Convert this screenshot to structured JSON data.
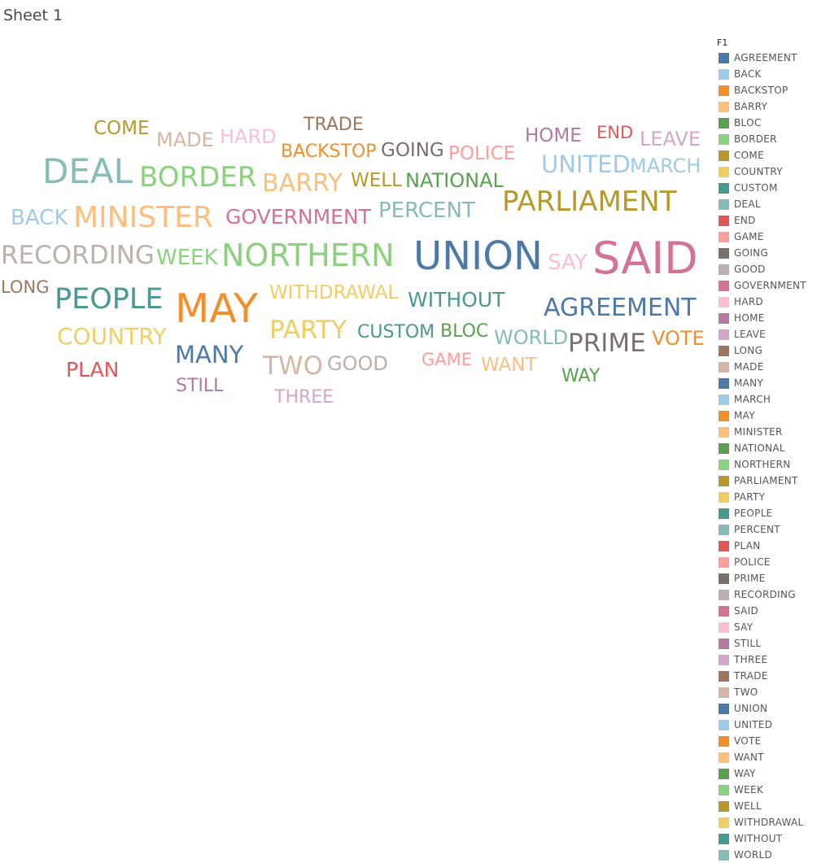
{
  "sheet": {
    "title": "Sheet 1"
  },
  "legend": {
    "title": "F1"
  },
  "chart_data": {
    "type": "word-cloud",
    "legend_placement": "right",
    "words": [
      {
        "text": "AGREEMENT",
        "color": "#4e79a7",
        "weight": 30
      },
      {
        "text": "BACK",
        "color": "#a0cbe8",
        "weight": 26
      },
      {
        "text": "BACKSTOP",
        "color": "#f28e2b",
        "weight": 22
      },
      {
        "text": "BARRY",
        "color": "#ffbe7d",
        "weight": 30
      },
      {
        "text": "BLOC",
        "color": "#59a14f",
        "weight": 22
      },
      {
        "text": "BORDER",
        "color": "#8cd17d",
        "weight": 34
      },
      {
        "text": "COME",
        "color": "#b6992d",
        "weight": 23
      },
      {
        "text": "COUNTRY",
        "color": "#f1ce63",
        "weight": 28
      },
      {
        "text": "CUSTOM",
        "color": "#499894",
        "weight": 22
      },
      {
        "text": "DEAL",
        "color": "#86bcb6",
        "weight": 42
      },
      {
        "text": "END",
        "color": "#e15759",
        "weight": 21
      },
      {
        "text": "GAME",
        "color": "#ff9d9a",
        "weight": 21
      },
      {
        "text": "GOING",
        "color": "#79706e",
        "weight": 23
      },
      {
        "text": "GOOD",
        "color": "#bab0ac",
        "weight": 24
      },
      {
        "text": "GOVERNMENT",
        "color": "#d37295",
        "weight": 25
      },
      {
        "text": "HARD",
        "color": "#fabfd2",
        "weight": 24
      },
      {
        "text": "HOME",
        "color": "#b07aa1",
        "weight": 23
      },
      {
        "text": "LEAVE",
        "color": "#d4a6c8",
        "weight": 24
      },
      {
        "text": "LONG",
        "color": "#9d7660",
        "weight": 21
      },
      {
        "text": "MADE",
        "color": "#d7b5a6",
        "weight": 24
      },
      {
        "text": "MANY",
        "color": "#4e79a7",
        "weight": 29
      },
      {
        "text": "MARCH",
        "color": "#a0cbe8",
        "weight": 24
      },
      {
        "text": "MAY",
        "color": "#f28e2b",
        "weight": 49
      },
      {
        "text": "MINISTER",
        "color": "#ffbe7d",
        "weight": 36
      },
      {
        "text": "NATIONAL",
        "color": "#59a14f",
        "weight": 24
      },
      {
        "text": "NORTHERN",
        "color": "#8cd17d",
        "weight": 38
      },
      {
        "text": "PARLIAMENT",
        "color": "#b6992d",
        "weight": 34
      },
      {
        "text": "PARTY",
        "color": "#f1ce63",
        "weight": 31
      },
      {
        "text": "PEOPLE",
        "color": "#499894",
        "weight": 35
      },
      {
        "text": "PERCENT",
        "color": "#86bcb6",
        "weight": 26
      },
      {
        "text": "PLAN",
        "color": "#e15759",
        "weight": 25
      },
      {
        "text": "POLICE",
        "color": "#ff9d9a",
        "weight": 23
      },
      {
        "text": "PRIME",
        "color": "#79706e",
        "weight": 31
      },
      {
        "text": "RECORDING",
        "color": "#bab0ac",
        "weight": 31
      },
      {
        "text": "SAID",
        "color": "#d37295",
        "weight": 54
      },
      {
        "text": "SAY",
        "color": "#fabfd2",
        "weight": 26
      },
      {
        "text": "STILL",
        "color": "#b07aa1",
        "weight": 22
      },
      {
        "text": "THREE",
        "color": "#d4a6c8",
        "weight": 22
      },
      {
        "text": "TRADE",
        "color": "#9d7660",
        "weight": 22
      },
      {
        "text": "TWO",
        "color": "#d7b5a6",
        "weight": 31
      },
      {
        "text": "UNION",
        "color": "#4e79a7",
        "weight": 48
      },
      {
        "text": "UNITED",
        "color": "#a0cbe8",
        "weight": 29
      },
      {
        "text": "VOTE",
        "color": "#f28e2b",
        "weight": 24
      },
      {
        "text": "WANT",
        "color": "#ffbe7d",
        "weight": 23
      },
      {
        "text": "WAY",
        "color": "#59a14f",
        "weight": 22
      },
      {
        "text": "WEEK",
        "color": "#8cd17d",
        "weight": 26
      },
      {
        "text": "WELL",
        "color": "#b6992d",
        "weight": 23
      },
      {
        "text": "WITHDRAWAL",
        "color": "#f1ce63",
        "weight": 23
      },
      {
        "text": "WITHOUT",
        "color": "#499894",
        "weight": 25
      },
      {
        "text": "WORLD",
        "color": "#86bcb6",
        "weight": 24
      }
    ]
  }
}
